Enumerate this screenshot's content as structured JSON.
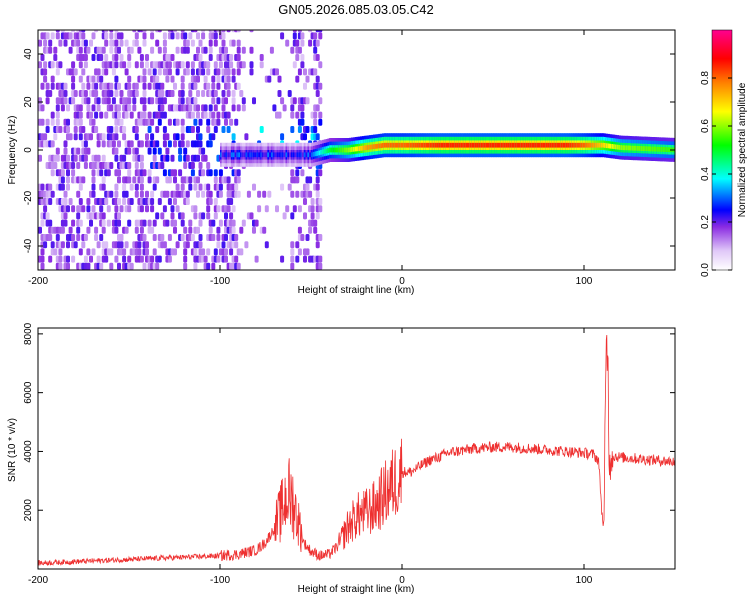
{
  "title": "GN05.2026.085.03.05.C42",
  "chart_data": [
    {
      "type": "heatmap",
      "xlabel": "Height of straight line (km)",
      "ylabel": "Frequency (Hz)",
      "xlim": [
        -200,
        150
      ],
      "ylim": [
        -50,
        50
      ],
      "x_ticks": [
        "-200",
        "-100",
        "0",
        "100"
      ],
      "y_ticks": [
        "-40",
        "-20",
        "0",
        "20",
        "40"
      ],
      "colorbar": {
        "label": "Normalized spectral amplitude",
        "range": [
          0,
          1
        ],
        "ticks": [
          "0.0",
          "0.2",
          "0.4",
          "0.6",
          "0.8"
        ],
        "colors": [
          "#ffffff",
          "#e0c8f8",
          "#8a2be2",
          "#0000ff",
          "#00ffff",
          "#00ff00",
          "#ffff00",
          "#ff8000",
          "#ff0000",
          "#ff00a0"
        ]
      },
      "ridge": {
        "x": [
          -50,
          -40,
          -30,
          -20,
          -10,
          0,
          20,
          50,
          90,
          100,
          110,
          120,
          150
        ],
        "frequency": [
          -2,
          0,
          0,
          1,
          2,
          2,
          2,
          2,
          2,
          2,
          2,
          1,
          0
        ],
        "amplitude": [
          0.3,
          0.5,
          0.6,
          0.75,
          0.8,
          0.8,
          0.85,
          0.85,
          0.85,
          0.8,
          0.7,
          0.6,
          0.55
        ]
      },
      "noise_region": {
        "x_from": -200,
        "x_to": -45,
        "x_gap": [
          -90,
          -60
        ]
      }
    },
    {
      "type": "line",
      "xlabel": "Height of straight line (km)",
      "ylabel": "SNR (10 * v/v)",
      "xlim": [
        -200,
        150
      ],
      "ylim": [
        0,
        8200
      ],
      "x_ticks": [
        "-200",
        "-100",
        "0",
        "100"
      ],
      "y_ticks": [
        "2000",
        "4000",
        "6000",
        "8000"
      ],
      "color": "#ee3030",
      "series": [
        {
          "x": [
            -200,
            -180,
            -160,
            -140,
            -120,
            -100,
            -90,
            -80,
            -75,
            -70,
            -66,
            -63,
            -60,
            -57,
            -54,
            -50,
            -45,
            -40,
            -35,
            -30,
            -25,
            -20,
            -15,
            -10,
            -5,
            0,
            5,
            10,
            15,
            20,
            25,
            30,
            40,
            50,
            60,
            70,
            80,
            90,
            100,
            105,
            108,
            110,
            111,
            112,
            113,
            114,
            115,
            116,
            120,
            130,
            140,
            150
          ],
          "y": [
            200,
            250,
            300,
            350,
            400,
            450,
            500,
            650,
            900,
            1400,
            2000,
            2600,
            2300,
            1600,
            900,
            600,
            450,
            500,
            800,
            1400,
            1800,
            1900,
            2100,
            2500,
            2900,
            3300,
            3300,
            3500,
            3700,
            3800,
            3950,
            4000,
            4100,
            4150,
            4150,
            4100,
            4050,
            4000,
            3950,
            3900,
            3700,
            1800,
            1500,
            6700,
            7800,
            3200,
            4100,
            3850,
            3800,
            3750,
            3700,
            3650
          ]
        }
      ]
    }
  ]
}
